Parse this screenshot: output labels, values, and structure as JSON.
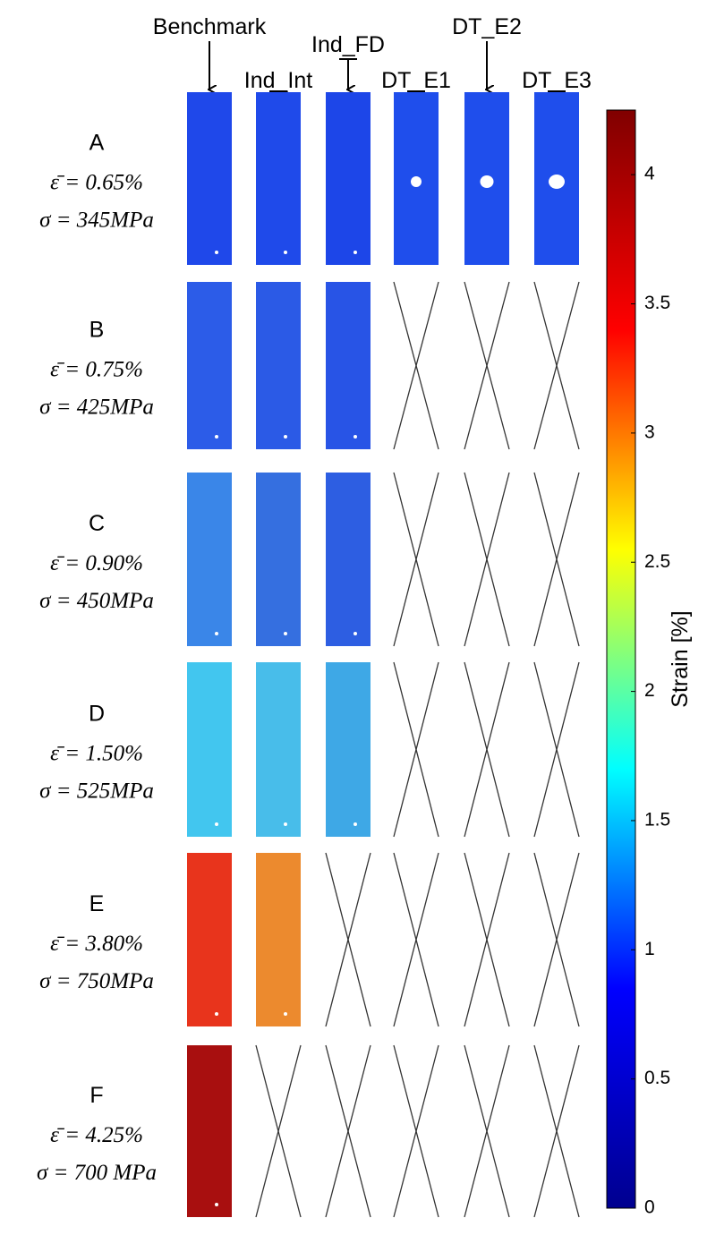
{
  "columns": [
    "Benchmark",
    "Ind_Int",
    "Ind_FD",
    "DT_E1",
    "DT_E2",
    "DT_E3"
  ],
  "rows": [
    {
      "label": "A",
      "strain": "ε̄ = 0.65%",
      "stress": "σ = 345MPa",
      "cells": [
        "#1f48ea",
        "#1f4aea",
        "#1d46e8",
        "#1f4eec",
        "#1f4eec",
        "#1f4eec"
      ]
    },
    {
      "label": "B",
      "strain": "ε̄ = 0.75%",
      "stress": "σ = 425MPa",
      "cells": [
        "#2c5ce8",
        "#2b5ae6",
        "#2854e6",
        null,
        null,
        null
      ]
    },
    {
      "label": "C",
      "strain": "ε̄ = 0.90%",
      "stress": "σ = 450MPa",
      "cells": [
        "#3a86e8",
        "#356fe0",
        "#2d5ee2",
        null,
        null,
        null
      ]
    },
    {
      "label": "D",
      "strain": "ε̄ = 1.50%",
      "stress": "σ = 525MPa",
      "cells": [
        "#42c6ef",
        "#48bdea",
        "#3ea8e6",
        null,
        null,
        null
      ]
    },
    {
      "label": "E",
      "strain": "ε̄ = 3.80%",
      "stress": "σ = 750MPa",
      "cells": [
        "#e8341c",
        "#ec8a2e",
        null,
        null,
        null,
        null
      ]
    },
    {
      "label": "F",
      "strain": "ε̄ = 4.25%",
      "stress": "σ = 700 MPa",
      "cells": [
        "#a80f0f",
        null,
        null,
        null,
        null,
        null
      ]
    }
  ],
  "colorbar": {
    "label": "Strain [%]",
    "lim": [
      0,
      4.25
    ],
    "ticks": [
      0,
      0.5,
      1,
      1.5,
      2,
      2.5,
      3,
      3.5,
      4
    ],
    "colors": [
      "#00008f",
      "#0000ff",
      "#00ffff",
      "#ffff00",
      "#ff0000",
      "#800000"
    ]
  }
}
